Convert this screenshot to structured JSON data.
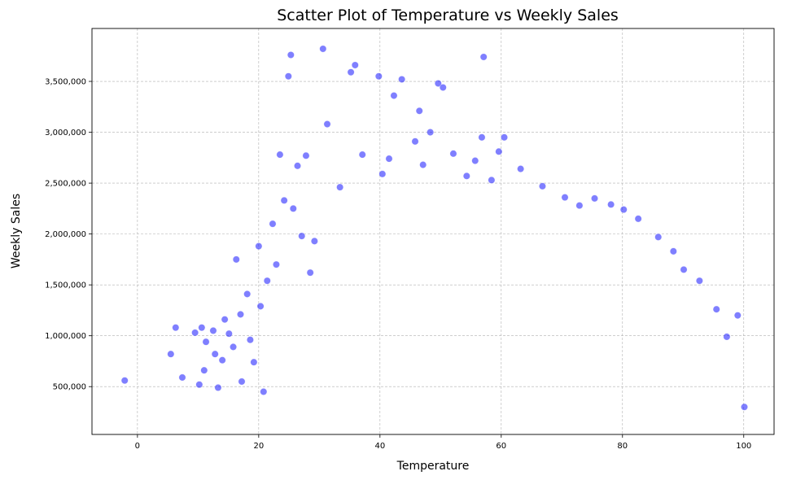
{
  "chart_data": {
    "type": "scatter",
    "title": "Scatter Plot of Temperature vs Weekly Sales",
    "xlabel": "Temperature",
    "ylabel": "Weekly Sales",
    "xlim": [
      -7.5,
      105
    ],
    "ylim": [
      30000,
      4020000
    ],
    "xticks": [
      0,
      20,
      40,
      60,
      80,
      100
    ],
    "xtick_labels": [
      "0",
      "20",
      "40",
      "60",
      "80",
      "100"
    ],
    "yticks": [
      500000,
      1000000,
      1500000,
      2000000,
      2500000,
      3000000,
      3500000
    ],
    "ytick_labels": [
      "500,000",
      "1,000,000",
      "1,500,000",
      "2,000,000",
      "2,500,000",
      "3,000,000",
      "3,500,000"
    ],
    "grid": true,
    "marker_color": "#0000ff",
    "marker_opacity": 0.5,
    "marker_edge_color": "#ffffff",
    "series": [
      {
        "x": [
          -2.1,
          5.5,
          6.3,
          7.4,
          9.5,
          10.2,
          10.6,
          11.0,
          11.3,
          12.5,
          12.8,
          13.3,
          14.0,
          14.4,
          15.1,
          15.8,
          16.3,
          17.0,
          17.2,
          18.1,
          18.6,
          19.2,
          20.0,
          20.3,
          20.8,
          21.4,
          22.3,
          22.9,
          23.5,
          24.2,
          24.9,
          25.3,
          25.7,
          26.4,
          27.1,
          27.8,
          28.5,
          29.2,
          30.6,
          31.3,
          33.4,
          35.2,
          35.9,
          37.1,
          39.8,
          40.4,
          41.5,
          42.3,
          43.6,
          45.8,
          46.5,
          47.1,
          48.3,
          49.6,
          50.4,
          52.1,
          54.3,
          55.7,
          56.8,
          57.1,
          58.4,
          59.6,
          60.5,
          63.2,
          66.8,
          70.5,
          72.9,
          75.4,
          78.1,
          80.2,
          82.6,
          85.9,
          88.4,
          90.1,
          92.7,
          95.5,
          97.2,
          99.0,
          100.1
        ],
        "y": [
          560000,
          820000,
          1080000,
          590000,
          1030000,
          520000,
          1080000,
          660000,
          940000,
          1050000,
          820000,
          490000,
          760000,
          1160000,
          1020000,
          890000,
          1750000,
          1210000,
          550000,
          1410000,
          960000,
          740000,
          1880000,
          1290000,
          450000,
          1540000,
          2100000,
          1700000,
          2780000,
          2330000,
          3550000,
          3760000,
          2250000,
          2670000,
          1980000,
          2770000,
          1620000,
          1930000,
          3820000,
          3080000,
          2460000,
          3590000,
          3660000,
          2780000,
          3550000,
          2590000,
          2740000,
          3360000,
          3520000,
          2910000,
          3210000,
          2680000,
          3000000,
          3480000,
          3440000,
          2790000,
          2570000,
          2720000,
          2950000,
          3740000,
          2530000,
          2810000,
          2950000,
          2640000,
          2470000,
          2360000,
          2280000,
          2350000,
          2290000,
          2240000,
          2150000,
          1970000,
          1830000,
          1650000,
          1540000,
          1260000,
          990000,
          1200000,
          300000
        ]
      }
    ]
  }
}
